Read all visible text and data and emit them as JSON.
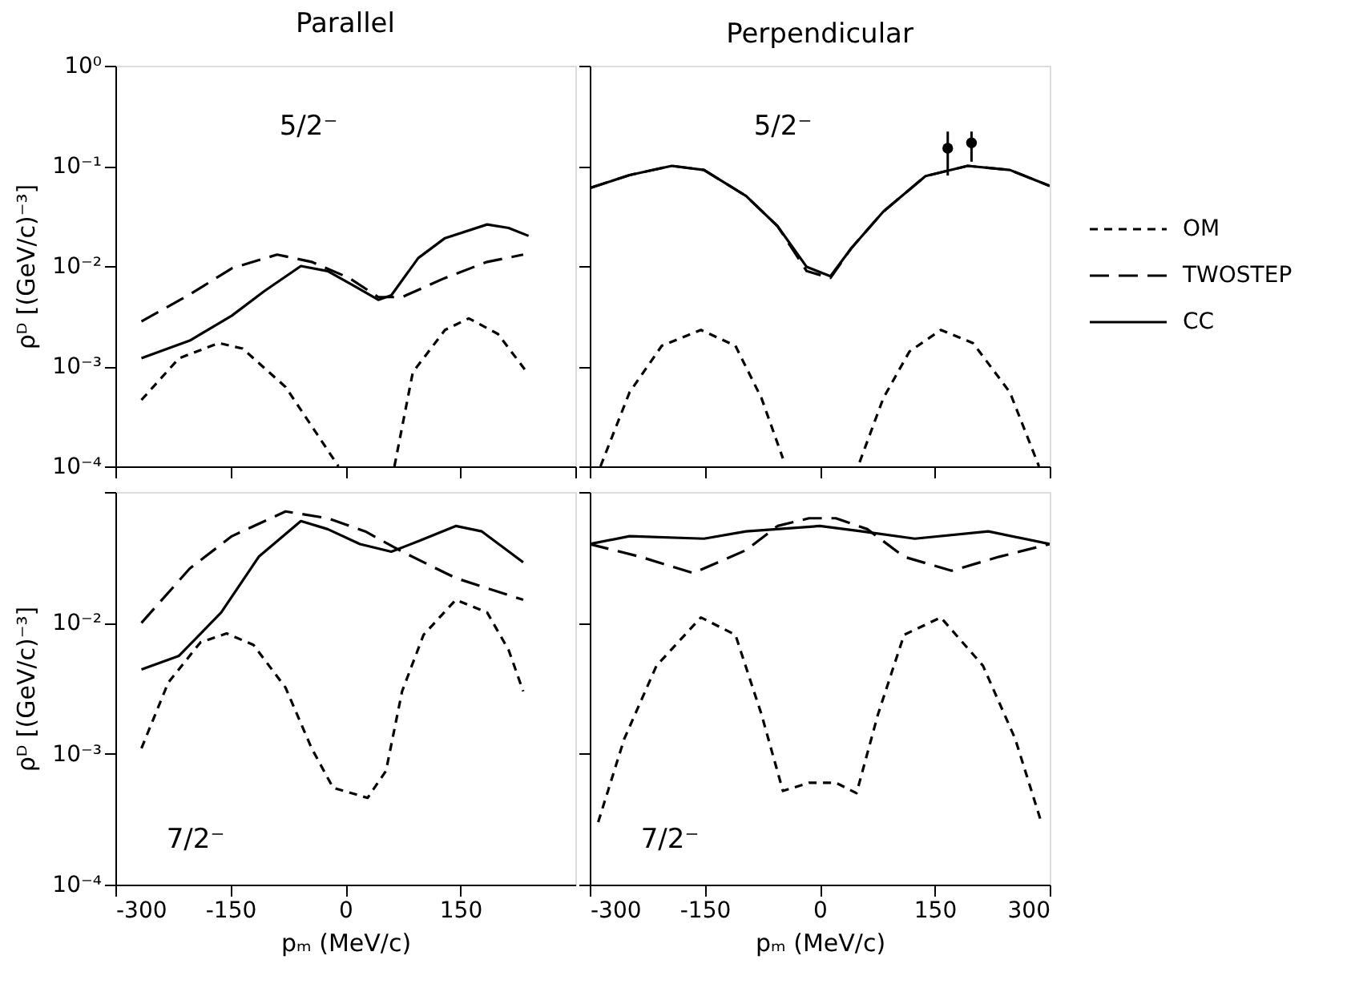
{
  "chart_data": [
    {
      "type": "line",
      "title": "Parallel",
      "ylabel": "ρᴰ [(GeV/c)⁻³]",
      "log": true,
      "xlim": [
        -300,
        300
      ],
      "ylim": [
        0.0001,
        1
      ],
      "xticks": [
        -300,
        -150,
        0,
        150,
        300
      ],
      "yticks": [
        {
          "value": 1,
          "label": "10⁰"
        },
        {
          "value": 0.1,
          "label": "10⁻¹"
        },
        {
          "value": 0.01,
          "label": "10⁻²"
        },
        {
          "value": 0.001,
          "label": "10⁻³"
        },
        {
          "value": 0.0001,
          "label": "10⁻⁴"
        }
      ],
      "tick_labels": "y",
      "grid": false,
      "legend": false,
      "annotations": [
        "5/2⁻"
      ],
      "series": [
        {
          "color": "#000000",
          "line_style": "dashed",
          "x": [
            -266,
            -217,
            -165,
            -134,
            -78,
            -37,
            -9,
            30,
            64,
            88,
            130,
            161,
            199,
            234
          ],
          "values": [
            0.00046,
            0.0012,
            0.0017,
            0.0015,
            0.00062,
            0.00021,
            0.0001,
            null,
            0.0001,
            0.00087,
            0.0023,
            0.003,
            0.0021,
            0.00093
          ]
        },
        {
          "color": "#000000",
          "line_style": "dashed",
          "x": [
            -266,
            -203,
            -148,
            -89,
            -44,
            5,
            43,
            74,
            130,
            185,
            232
          ],
          "values": [
            0.0028,
            0.0052,
            0.0095,
            0.013,
            0.011,
            0.0076,
            0.0049,
            0.0049,
            0.0076,
            0.011,
            0.013
          ]
        },
        {
          "color": "#000000",
          "line_style": "solid",
          "x": [
            -266,
            -203,
            -148,
            -106,
            -58,
            -23,
            12,
            43,
            60,
            95,
            130,
            185,
            213,
            239
          ],
          "values": [
            0.0012,
            0.0018,
            0.0032,
            0.0056,
            0.01,
            0.0089,
            0.0063,
            0.0046,
            0.0051,
            0.012,
            0.019,
            0.026,
            0.024,
            0.02
          ]
        }
      ]
    },
    {
      "type": "line",
      "title": "Perpendicular",
      "log": true,
      "xlim": [
        -300,
        300
      ],
      "ylim": [
        0.0001,
        1
      ],
      "xticks": [
        -300,
        -150,
        0,
        150,
        300
      ],
      "yticks": [
        {
          "value": 1,
          "label": null
        },
        {
          "value": 0.1,
          "label": null
        },
        {
          "value": 0.01,
          "label": null
        },
        {
          "value": 0.001,
          "label": null
        },
        {
          "value": 0.0001,
          "label": null
        }
      ],
      "tick_labels": false,
      "grid": false,
      "legend": "right",
      "annotations": [
        "5/2⁻"
      ],
      "series": [
        {
          "name": "OM",
          "color": "#000000",
          "line_style": "dashed",
          "x": [
            -286,
            -248,
            -206,
            -155,
            -110,
            -76,
            -48,
            0,
            52,
            83,
            117,
            158,
            200,
            248,
            286
          ],
          "values": [
            0.0001,
            0.00055,
            0.0016,
            0.0023,
            0.0016,
            0.00048,
            0.00012,
            null,
            0.00011,
            0.00048,
            0.0014,
            0.0023,
            0.0017,
            0.00055,
            0.0001
          ]
        },
        {
          "name": "TWOSTEP",
          "color": "#000000",
          "line_style": "dashed",
          "x": [
            -300,
            -248,
            -193,
            -151,
            -96,
            -55,
            -17,
            14,
            41,
            83,
            138,
            193,
            248,
            300
          ],
          "values": [
            0.06,
            0.081,
            0.1,
            0.091,
            0.05,
            0.025,
            0.0089,
            0.0076,
            0.015,
            0.035,
            0.079,
            0.1,
            0.091,
            0.063
          ]
        },
        {
          "name": "CC",
          "color": "#000000",
          "line_style": "solid",
          "x": [
            -300,
            -248,
            -193,
            -151,
            -96,
            -55,
            -17,
            14,
            41,
            83,
            138,
            193,
            248,
            300
          ],
          "values": [
            0.06,
            0.081,
            0.1,
            0.091,
            0.05,
            0.025,
            0.0098,
            0.0079,
            0.015,
            0.035,
            0.079,
            0.1,
            0.091,
            0.063
          ]
        },
        {
          "type": "scatter",
          "color": "#000000",
          "marker": "circle",
          "x": [
            167,
            198
          ],
          "values": [
            0.15,
            0.17
          ],
          "errors": [
            [
              0.08,
              0.22
            ],
            [
              0.11,
              0.22
            ]
          ]
        }
      ]
    },
    {
      "type": "line",
      "xlabel": "pₘ (MeV/c)",
      "ylabel": "ρᴰ [(GeV/c)⁻³]",
      "log": true,
      "xlim": [
        -300,
        300
      ],
      "ylim": [
        0.0001,
        0.1
      ],
      "xticks": [
        -300,
        -150,
        0,
        150
      ],
      "yticks": [
        {
          "value": 0.1,
          "label": null
        },
        {
          "value": 0.01,
          "label": "10⁻²"
        },
        {
          "value": 0.001,
          "label": "10⁻³"
        },
        {
          "value": 0.0001,
          "label": "10⁻⁴"
        }
      ],
      "grid": false,
      "legend": false,
      "annotations": [
        "7/2⁻"
      ],
      "series": [
        {
          "color": "#000000",
          "line_style": "dashed",
          "x": [
            -266,
            -231,
            -189,
            -155,
            -120,
            -78,
            -44,
            -16,
            29,
            53,
            74,
            102,
            144,
            185,
            213,
            232
          ],
          "values": [
            0.0011,
            0.0035,
            0.0071,
            0.0083,
            0.0068,
            0.0032,
            0.0011,
            0.00055,
            0.00046,
            0.00074,
            0.003,
            0.0081,
            0.015,
            0.012,
            0.0062,
            0.003
          ]
        },
        {
          "color": "#000000",
          "line_style": "dashed",
          "x": [
            -266,
            -203,
            -148,
            -78,
            -23,
            26,
            74,
            144,
            232
          ],
          "values": [
            0.01,
            0.026,
            0.046,
            0.071,
            0.063,
            0.05,
            0.035,
            0.022,
            0.015
          ]
        },
        {
          "color": "#000000",
          "line_style": "solid",
          "x": [
            -266,
            -217,
            -162,
            -113,
            -58,
            -23,
            19,
            60,
            95,
            144,
            178,
            232
          ],
          "values": [
            0.0044,
            0.0056,
            0.012,
            0.032,
            0.06,
            0.052,
            0.04,
            0.035,
            0.042,
            0.055,
            0.05,
            0.029
          ]
        }
      ]
    },
    {
      "type": "line",
      "xlabel": "pₘ (MeV/c)",
      "log": true,
      "xlim": [
        -300,
        300
      ],
      "ylim": [
        0.0001,
        0.1
      ],
      "xticks": [
        -300,
        -150,
        0,
        150,
        300
      ],
      "yticks": [
        {
          "value": 0.1,
          "label": null
        },
        {
          "value": 0.01,
          "label": null
        },
        {
          "value": 0.001,
          "label": null
        },
        {
          "value": 0.0001,
          "label": null
        }
      ],
      "tick_labels": "x",
      "grid": false,
      "legend": false,
      "annotations": [
        "7/2⁻"
      ],
      "series": [
        {
          "color": "#000000",
          "line_style": "dashed",
          "x": [
            -289,
            -255,
            -213,
            -155,
            -110,
            -76,
            -48,
            -14,
            21,
            48,
            76,
            110,
            158,
            213,
            255,
            289
          ],
          "values": [
            0.0003,
            0.0013,
            0.0047,
            0.011,
            0.0081,
            0.002,
            0.00052,
            0.0006,
            0.0006,
            0.0005,
            0.002,
            0.0081,
            0.011,
            0.0047,
            0.0013,
            0.0003
          ]
        },
        {
          "color": "#000000",
          "line_style": "dashed",
          "x": [
            -300,
            -234,
            -165,
            -96,
            -55,
            -14,
            21,
            62,
            110,
            172,
            234,
            300
          ],
          "values": [
            0.04,
            0.032,
            0.024,
            0.036,
            0.055,
            0.063,
            0.063,
            0.052,
            0.032,
            0.025,
            0.032,
            0.04
          ]
        },
        {
          "color": "#000000",
          "line_style": "solid",
          "x": [
            -300,
            -248,
            -151,
            -96,
            0,
            55,
            124,
            220,
            300
          ],
          "values": [
            0.04,
            0.046,
            0.044,
            0.05,
            0.055,
            0.05,
            0.044,
            0.05,
            0.04
          ]
        }
      ]
    }
  ]
}
